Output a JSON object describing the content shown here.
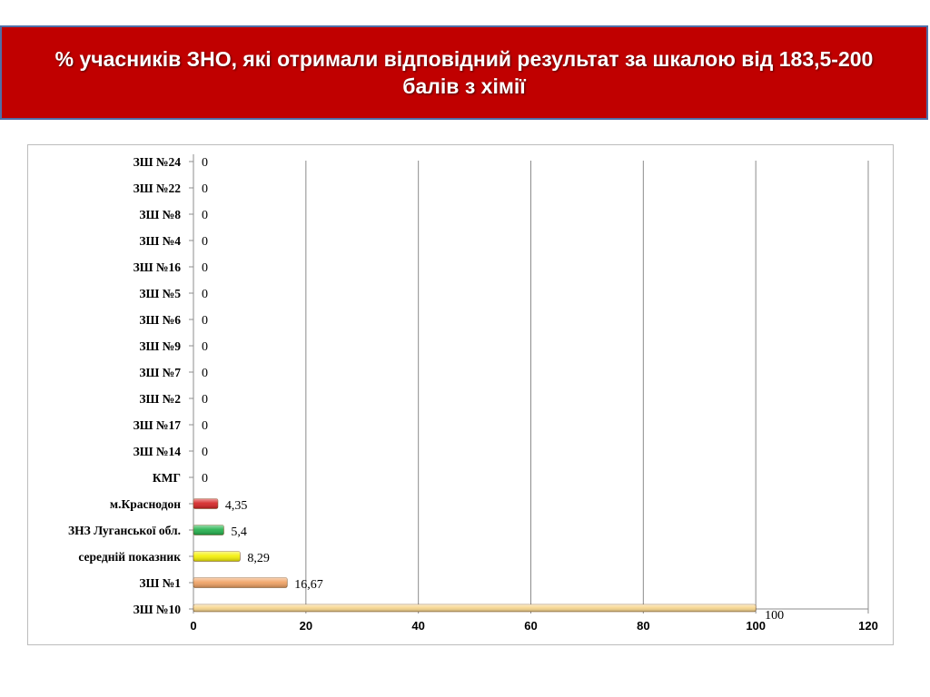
{
  "title": "% учасників ЗНО, які отримали відповідний результат за шкалою  від 183,5-200 балів з хімії",
  "chart_data": {
    "type": "bar",
    "orientation": "horizontal",
    "categories": [
      "ЗШ №24",
      "ЗШ №22",
      "ЗШ №8",
      "ЗШ №4",
      "ЗШ №16",
      "ЗШ №5",
      "ЗШ №6",
      "ЗШ №9",
      "ЗШ №7",
      "ЗШ №2",
      "ЗШ №17",
      "ЗШ №14",
      "КМГ",
      "м.Краснодон",
      "ЗНЗ Луганської обл.",
      "середній показник",
      "ЗШ №1",
      "ЗШ №10"
    ],
    "values": [
      0,
      0,
      0,
      0,
      0,
      0,
      0,
      0,
      0,
      0,
      0,
      0,
      0,
      4.35,
      5.4,
      8.29,
      16.67,
      100
    ],
    "value_labels": [
      "0",
      "0",
      "0",
      "0",
      "0",
      "0",
      "0",
      "0",
      "0",
      "0",
      "0",
      "0",
      "0",
      "4,35",
      "5,4",
      "8,29",
      "16,67",
      "100"
    ],
    "bar_colors": [
      "#f2b56f",
      "#f2b56f",
      "#f2b56f",
      "#f2b56f",
      "#f2b56f",
      "#f2b56f",
      "#f2b56f",
      "#f2b56f",
      "#f2b56f",
      "#f2b56f",
      "#f2b56f",
      "#f2b56f",
      "#f2b56f",
      "#d42020",
      "#1fb04a",
      "#f4f000",
      "#f0a060",
      "#f7d48a"
    ],
    "x_ticks": [
      "0",
      "20",
      "40",
      "60",
      "80",
      "100",
      "120"
    ],
    "xlim": [
      0,
      120
    ],
    "grid": "vertical",
    "title": "% учасників ЗНО, які отримали відповідний результат за шкалою  від 183,5-200 балів з хімії",
    "xlabel": "",
    "ylabel": ""
  }
}
